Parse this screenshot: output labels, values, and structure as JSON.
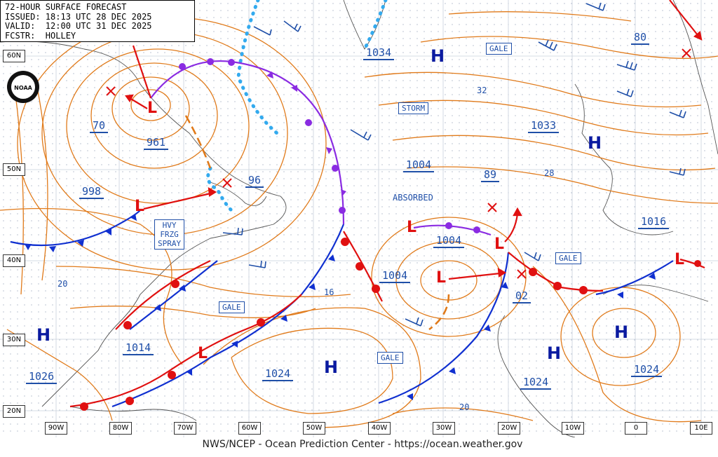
{
  "header": {
    "line1": "72-HOUR SURFACE FORECAST",
    "line2": "ISSUED: 18:13 UTC 28 DEC 2025",
    "line3": "VALID:  12:00 UTC 31 DEC 2025",
    "line4": "FCSTR:  HOLLEY"
  },
  "footer": "NWS/NCEP - Ocean Prediction Center - https://ocean.weather.gov",
  "logo": "NOAA",
  "latitudes": [
    "60N",
    "50N",
    "40N",
    "30N",
    "20N"
  ],
  "longitudes": [
    "90W",
    "80W",
    "70W",
    "60W",
    "50W",
    "40W",
    "30W",
    "20W",
    "10W",
    "0",
    "10E"
  ],
  "pressures": [
    "1034",
    "80",
    "70",
    "961",
    "96",
    "998",
    "1033",
    "1004",
    "89",
    "1004",
    "1004",
    "1016",
    "02",
    "1014",
    "1024",
    "1026",
    "1024",
    "1024"
  ],
  "isobar_labels": [
    "32",
    "28",
    "20",
    "16",
    "20"
  ],
  "warnings": {
    "gale": "GALE",
    "storm": "STORM",
    "absorbed": "ABSORBED",
    "hvy_frzg_spray": [
      "HVY",
      "FRZG",
      "SPRAY"
    ]
  },
  "symbols": {
    "high": "H",
    "low": "L"
  },
  "colors": {
    "isobar": "#e07a1a",
    "label": "#1f4fa8",
    "cold_front": "#1030d0",
    "warm_front": "#e01010",
    "occluded_front": "#8a2be2",
    "ice_edge": "#33aaee",
    "high": "#0a1aa0",
    "land": "#444444"
  }
}
